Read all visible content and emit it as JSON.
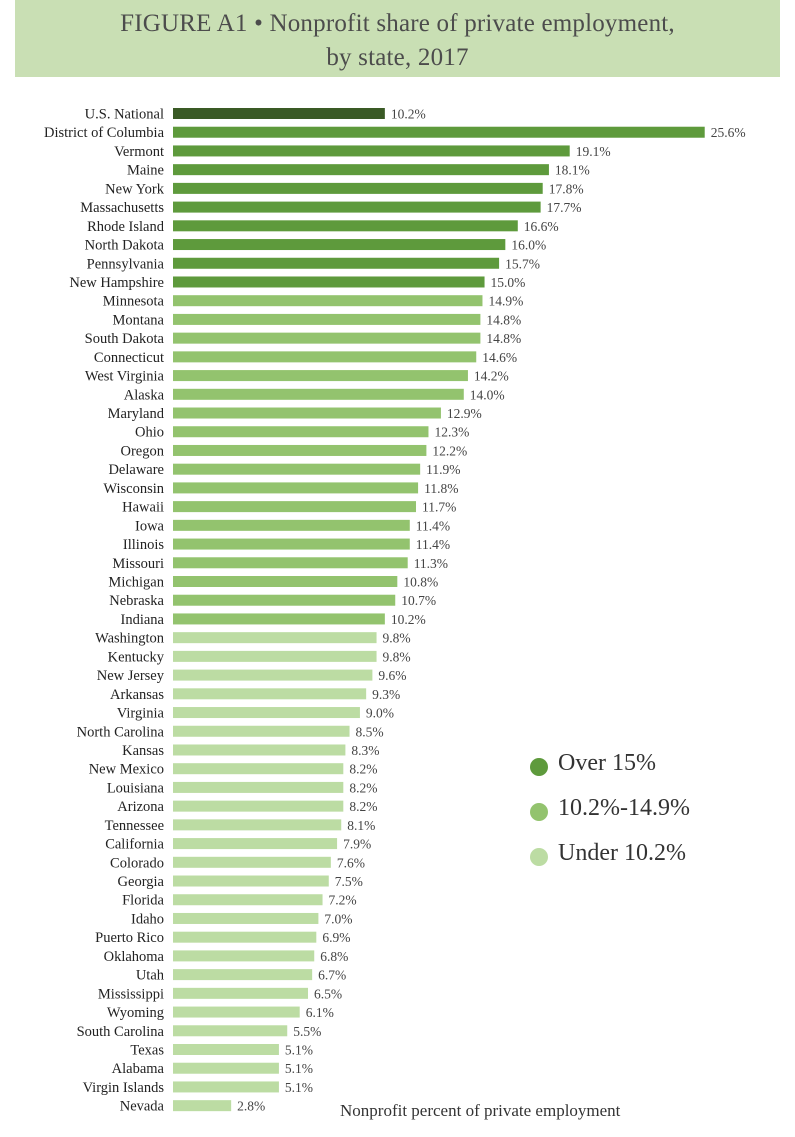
{
  "title": {
    "line1": "FIGURE A1 • Nonprofit share of private employment,",
    "line2": "by state, 2017"
  },
  "colors": {
    "national": "#3a5a25",
    "over_15": "#5e9a3c",
    "mid": "#93c36e",
    "under": "#bcdca3"
  },
  "legend": [
    {
      "label": "Over 15%",
      "color": "#5e9a3c"
    },
    {
      "label": "10.2%-14.9%",
      "color": "#93c36e"
    },
    {
      "label": "Under 10.2%",
      "color": "#bcdca3"
    }
  ],
  "chart_data": {
    "type": "bar",
    "orientation": "horizontal",
    "xlabel": "Nonprofit percent of private employment",
    "ylabel": "",
    "xlim": [
      0,
      26
    ],
    "grid": false,
    "legend_position": "right",
    "value_suffix": "%",
    "categories": [
      "U.S. National",
      "District of Columbia",
      "Vermont",
      "Maine",
      "New York",
      "Massachusetts",
      "Rhode Island",
      "North Dakota",
      "Pennsylvania",
      "New Hampshire",
      "Minnesota",
      "Montana",
      "South Dakota",
      "Connecticut",
      "West Virginia",
      "Alaska",
      "Maryland",
      "Ohio",
      "Oregon",
      "Delaware",
      "Wisconsin",
      "Hawaii",
      "Iowa",
      "Illinois",
      "Missouri",
      "Michigan",
      "Nebraska",
      "Indiana",
      "Washington",
      "Kentucky",
      "New Jersey",
      "Arkansas",
      "Virginia",
      "North Carolina",
      "Kansas",
      "New Mexico",
      "Louisiana",
      "Arizona",
      "Tennessee",
      "California",
      "Colorado",
      "Georgia",
      "Florida",
      "Idaho",
      "Puerto Rico",
      "Oklahoma",
      "Utah",
      "Mississippi",
      "Wyoming",
      "South Carolina",
      "Texas",
      "Alabama",
      "Virgin Islands",
      "Nevada"
    ],
    "values": [
      10.2,
      25.6,
      19.1,
      18.1,
      17.8,
      17.7,
      16.6,
      16.0,
      15.7,
      15.0,
      14.9,
      14.8,
      14.8,
      14.6,
      14.2,
      14.0,
      12.9,
      12.3,
      12.2,
      11.9,
      11.8,
      11.7,
      11.4,
      11.4,
      11.3,
      10.8,
      10.7,
      10.2,
      9.8,
      9.8,
      9.6,
      9.3,
      9.0,
      8.5,
      8.3,
      8.2,
      8.2,
      8.2,
      8.1,
      7.9,
      7.6,
      7.5,
      7.2,
      7.0,
      6.9,
      6.8,
      6.7,
      6.5,
      6.1,
      5.5,
      5.1,
      5.1,
      5.1,
      2.8
    ]
  }
}
